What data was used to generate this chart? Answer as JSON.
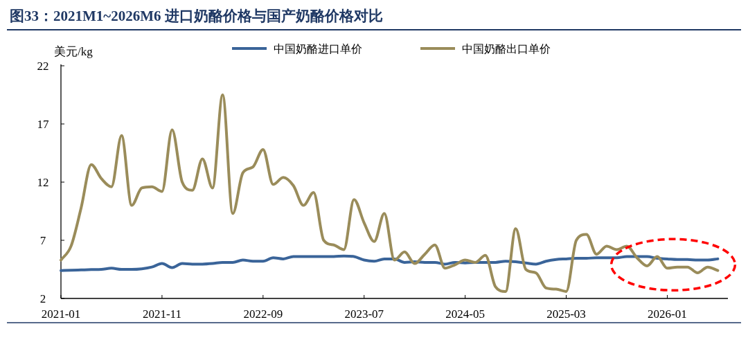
{
  "chart_data": {
    "type": "line",
    "title": "图33：2021M1~2026M6 进口奶酪价格与国产奶酪价格对比",
    "ylabel": "美元/kg",
    "x": [
      "2021-01",
      "2021-02",
      "2021-03",
      "2021-04",
      "2021-05",
      "2021-06",
      "2021-07",
      "2021-08",
      "2021-09",
      "2021-10",
      "2021-11",
      "2021-12",
      "2022-01",
      "2022-02",
      "2022-03",
      "2022-04",
      "2022-05",
      "2022-06",
      "2022-07",
      "2022-08",
      "2022-09",
      "2022-10",
      "2022-11",
      "2022-12",
      "2023-01",
      "2023-02",
      "2023-03",
      "2023-04",
      "2023-05",
      "2023-06",
      "2023-07",
      "2023-08",
      "2023-09",
      "2023-10",
      "2023-11",
      "2023-12",
      "2024-01",
      "2024-02",
      "2024-03",
      "2024-04",
      "2024-05",
      "2024-06",
      "2024-07",
      "2024-08",
      "2024-09",
      "2024-10",
      "2024-11",
      "2024-12",
      "2025-01",
      "2025-02",
      "2025-03",
      "2025-04",
      "2025-05",
      "2025-06",
      "2025-07",
      "2025-08",
      "2025-09",
      "2025-10",
      "2025-11",
      "2025-12",
      "2026-01",
      "2026-02",
      "2026-03",
      "2026-04",
      "2026-05",
      "2026-06"
    ],
    "series": [
      {
        "name": "中国奶酪进口单价",
        "color": "#3a6499",
        "values": [
          4.4,
          4.42,
          4.45,
          4.48,
          4.5,
          4.6,
          4.5,
          4.5,
          4.55,
          4.7,
          5.0,
          4.65,
          5.0,
          4.95,
          4.95,
          5.0,
          5.1,
          5.1,
          5.3,
          5.2,
          5.2,
          5.5,
          5.4,
          5.6,
          5.6,
          5.6,
          5.6,
          5.6,
          5.65,
          5.6,
          5.3,
          5.2,
          5.4,
          5.4,
          5.1,
          5.15,
          5.1,
          5.1,
          4.95,
          5.1,
          5.05,
          5.1,
          5.1,
          5.1,
          5.2,
          5.15,
          5.05,
          4.95,
          5.2,
          5.35,
          5.4,
          5.45,
          5.45,
          5.5,
          5.5,
          5.5,
          5.6,
          5.6,
          5.6,
          5.45,
          5.4,
          5.35,
          5.35,
          5.3,
          5.3,
          5.4
        ]
      },
      {
        "name": "中国奶酪出口单价",
        "color": "#9a8c5a",
        "values": [
          5.3,
          6.5,
          9.8,
          13.5,
          12.3,
          11.6,
          16.0,
          10.0,
          11.5,
          11.6,
          11.2,
          16.5,
          12.0,
          11.3,
          14.0,
          11.5,
          19.5,
          9.3,
          12.8,
          13.3,
          14.8,
          11.8,
          12.4,
          11.7,
          10.0,
          11.1,
          7.0,
          6.6,
          6.2,
          10.5,
          8.5,
          6.9,
          9.3,
          5.3,
          6.0,
          5.0,
          5.8,
          6.6,
          4.6,
          4.9,
          5.3,
          5.1,
          5.7,
          3.0,
          2.6,
          8.0,
          4.5,
          4.2,
          2.9,
          2.8,
          2.6,
          7.0,
          7.5,
          5.8,
          6.5,
          6.2,
          6.5,
          5.5,
          4.8,
          5.6,
          4.6,
          4.7,
          4.7,
          4.2,
          4.7,
          4.4
        ]
      }
    ],
    "xlim": [
      "2021-01",
      "2026-07"
    ],
    "xticks": [
      "2021-01",
      "2021-11",
      "2022-09",
      "2023-07",
      "2024-05",
      "2025-03",
      "2026-01"
    ],
    "ylim": [
      2,
      22
    ],
    "yticks": [
      2,
      7,
      12,
      17,
      22
    ],
    "grid": false,
    "legend": "top",
    "marker": "none",
    "line_style": "solid"
  }
}
